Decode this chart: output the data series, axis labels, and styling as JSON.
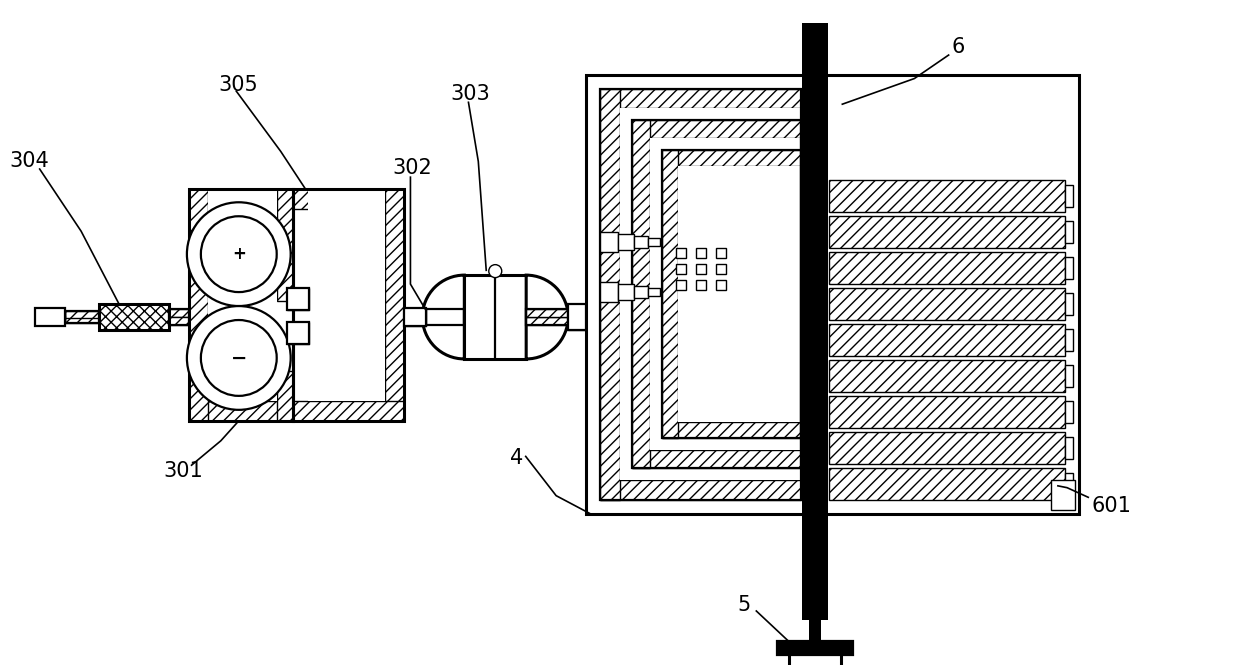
{
  "bg_color": "#ffffff",
  "line_color": "#000000",
  "label_fontsize": 15,
  "figsize": [
    12.4,
    6.66
  ],
  "dpi": 100
}
